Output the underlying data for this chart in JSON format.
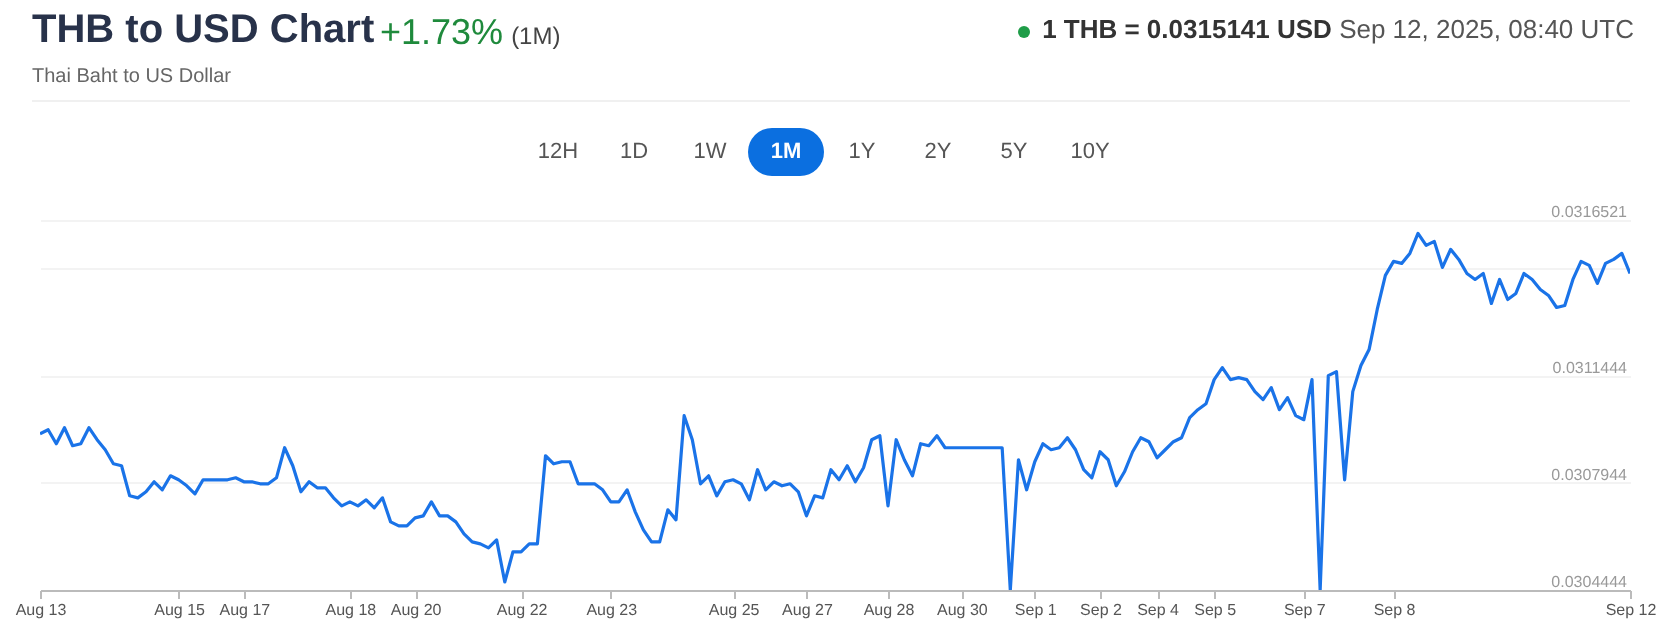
{
  "chart_data": {
    "type": "line",
    "title": "THB to USD Chart",
    "subtitle": "Thai Baht to US Dollar",
    "annotations": [
      "+1.73%",
      "(1M)",
      "1 THB = 0.0315141 USD",
      "Sep 12, 2025, 08:40 UTC",
      "12H",
      "1D",
      "1W",
      "1M",
      "1Y",
      "2Y",
      "5Y",
      "10Y"
    ],
    "categories": [
      "Aug 13",
      null,
      null,
      null,
      null,
      null,
      null,
      null,
      null,
      null,
      null,
      null,
      null,
      null,
      null,
      null,
      null,
      "Aug 15",
      null,
      null,
      null,
      null,
      null,
      null,
      null,
      "Aug 17",
      null,
      null,
      null,
      null,
      null,
      null,
      null,
      null,
      null,
      null,
      null,
      null,
      "Aug 18",
      null,
      null,
      null,
      null,
      null,
      null,
      null,
      "Aug 20",
      null,
      null,
      null,
      null,
      null,
      null,
      null,
      null,
      null,
      null,
      null,
      null,
      "Aug 22",
      null,
      null,
      null,
      null,
      null,
      null,
      null,
      null,
      null,
      null,
      "Aug 23",
      null,
      null,
      null,
      null,
      null,
      null,
      null,
      null,
      null,
      null,
      null,
      null,
      null,
      null,
      "Aug 25",
      null,
      null,
      null,
      null,
      null,
      null,
      null,
      null,
      "Aug 27",
      null,
      null,
      null,
      null,
      null,
      null,
      null,
      null,
      null,
      "Aug 28",
      null,
      null,
      null,
      null,
      null,
      null,
      null,
      null,
      "Aug 30",
      null,
      null,
      null,
      null,
      null,
      null,
      null,
      null,
      "Sep 1",
      null,
      null,
      null,
      null,
      null,
      null,
      null,
      "Sep 2",
      null,
      null,
      null,
      null,
      null,
      null,
      "Sep 4",
      null,
      null,
      null,
      null,
      null,
      null,
      "Sep 5",
      null,
      null,
      null,
      null,
      null,
      null,
      null,
      null,
      null,
      null,
      "Sep 7",
      null,
      null,
      null,
      null,
      null,
      null,
      null,
      null,
      null,
      null,
      "Sep 8",
      null,
      null,
      null,
      null,
      null,
      null,
      null,
      null,
      null,
      null,
      null,
      null,
      null,
      null,
      null,
      null,
      null,
      null,
      null,
      null,
      null,
      null,
      null,
      null,
      null,
      null,
      null,
      null,
      "Sep 12"
    ],
    "ylim": [
      0.0304444,
      0.0316521
    ],
    "yticks": [
      0.0304444,
      0.0307944,
      0.0311444,
      {
        "value": 0.0314944,
        "label": null
      },
      0.0316521
    ],
    "grid": "y",
    "marker": "none",
    "line_style": "solid",
    "series": [
      {
        "color": "#1a73e8",
        "values": [
          0.0309545,
          0.0309676,
          0.0309218,
          0.0309741,
          0.0309153,
          0.0309218,
          0.0309741,
          0.0309349,
          0.0309022,
          0.0308564,
          0.0308499,
          0.0307518,
          0.0307452,
          0.0307649,
          0.0307976,
          0.0307714,
          0.0308172,
          0.0308041,
          0.0307845,
          0.0307583,
          0.0308041,
          0.0308041,
          0.0308041,
          0.0308041,
          0.0308106,
          0.0307976,
          0.0307976,
          0.030791,
          0.030791,
          0.0308106,
          0.0309087,
          0.0308499,
          0.0307649,
          0.0307976,
          0.030778,
          0.030778,
          0.0307452,
          0.0307191,
          0.0307322,
          0.0307191,
          0.0307387,
          0.0307125,
          0.0307452,
          0.0306668,
          0.0306537,
          0.0306537,
          0.0306798,
          0.0306864,
          0.0307322,
          0.0306864,
          0.0306864,
          0.0306668,
          0.0306275,
          0.0306014,
          0.0305948,
          0.0305817,
          0.0306079,
          0.0304706,
          0.0305687,
          0.0305687,
          0.0305948,
          0.0305948,
          0.0308826,
          0.0308564,
          0.030863,
          0.030863,
          0.030791,
          0.030791,
          0.030791,
          0.0307714,
          0.0307322,
          0.0307322,
          0.0307714,
          0.0306995,
          0.0306406,
          0.0306014,
          0.0306014,
          0.030706,
          0.0306733,
          0.0310134,
          0.0309349,
          0.030791,
          0.0308172,
          0.0307518,
          0.0307976,
          0.0308041,
          0.030791,
          0.0307387,
          0.030837,
          0.0307714,
          0.0307976,
          0.0307845,
          0.030791,
          0.0307649,
          0.0306864,
          0.0307518,
          0.0307452,
          0.030837,
          0.0308041,
          0.0308499,
          0.0307976,
          0.0308433,
          0.0309349,
          0.030948,
          0.0307191,
          0.0309349,
          0.0308695,
          0.0308172,
          0.0309218,
          0.0309153,
          0.030948,
          0.0309087,
          0.0309087,
          0.0309087,
          0.0309087,
          0.0309087,
          0.0309087,
          0.0309087,
          0.0309087,
          0.0304444,
          0.0308695,
          0.0307714,
          0.030863,
          0.0309218,
          0.0309022,
          0.0309087,
          0.0309414,
          0.0309022,
          0.030837,
          0.0308106,
          0.0308957,
          0.0308695,
          0.0307845,
          0.0308303,
          0.0308957,
          0.0309414,
          0.0309284,
          0.030876,
          0.0309022,
          0.0309284,
          0.0309414,
          0.0310068,
          0.031033,
          0.0310526,
          0.0311311,
          0.0311703,
          0.0311311,
          0.0311376,
          0.0311311,
          0.0310919,
          0.0310657,
          0.0311049,
          0.031033,
          0.0310722,
          0.0310134,
          0.0310003,
          0.0311311,
          0.0304444,
          0.0311442,
          0.0311573,
          0.0308041,
          0.0310919,
          0.0311769,
          0.0312292,
          0.03136,
          0.0314712,
          0.031517,
          0.0315104,
          0.0315431,
          0.0316085,
          0.0315693,
          0.0315824,
          0.0314973,
          0.0315562,
          0.0315235,
          0.0314777,
          0.0314581,
          0.0314777,
          0.0313796,
          0.0314581,
          0.0313927,
          0.0314123,
          0.0314777,
          0.0314581,
          0.0314254,
          0.0314058,
          0.0313665,
          0.0313731,
          0.0314581,
          0.031517,
          0.0315039,
          0.031445,
          0.0315104,
          0.0315235,
          0.0315431,
          0.0314777
        ]
      }
    ]
  }
}
